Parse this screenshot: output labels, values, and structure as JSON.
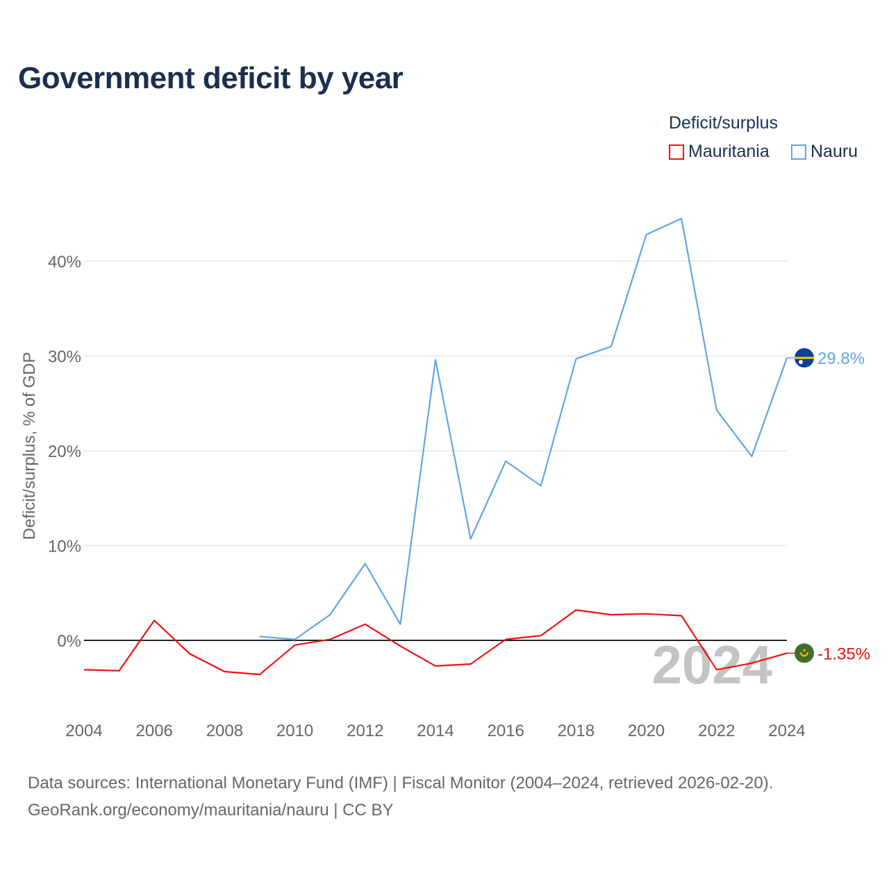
{
  "title": "Government deficit by year",
  "legend": {
    "title": "Deficit/surplus",
    "items": [
      {
        "label": "Mauritania",
        "color": "#ee1111"
      },
      {
        "label": "Nauru",
        "color": "#60a5e6"
      }
    ]
  },
  "chart_data": {
    "type": "line",
    "title": "Government deficit by year",
    "xlabel": "",
    "ylabel": "Deficit/surplus, % of GDP",
    "xlim": [
      2004,
      2024
    ],
    "ylim": [
      -5,
      45
    ],
    "x_ticks": [
      2004,
      2006,
      2008,
      2010,
      2012,
      2014,
      2016,
      2018,
      2020,
      2022,
      2024
    ],
    "y_ticks": [
      0,
      10,
      20,
      30,
      40
    ],
    "y_tick_labels": [
      "0%",
      "10%",
      "20%",
      "30%",
      "40%"
    ],
    "grid": true,
    "watermark_year": "2024",
    "series": [
      {
        "name": "Mauritania",
        "color": "#ee1111",
        "end_label": "-1.35%",
        "points": [
          [
            2004,
            -3.1
          ],
          [
            2005,
            -3.2
          ],
          [
            2006,
            2.1
          ],
          [
            2007,
            -1.4
          ],
          [
            2008,
            -3.3
          ],
          [
            2009,
            -3.6
          ],
          [
            2010,
            -0.5
          ],
          [
            2011,
            0.1
          ],
          [
            2012,
            1.7
          ],
          [
            2013,
            -0.6
          ],
          [
            2014,
            -2.7
          ],
          [
            2015,
            -2.5
          ],
          [
            2016,
            0.1
          ],
          [
            2017,
            0.5
          ],
          [
            2018,
            3.2
          ],
          [
            2019,
            2.7
          ],
          [
            2020,
            2.8
          ],
          [
            2021,
            2.6
          ],
          [
            2022,
            -3.1
          ],
          [
            2023,
            -2.4
          ],
          [
            2024,
            -1.35
          ]
        ]
      },
      {
        "name": "Nauru",
        "color": "#60a5e6",
        "end_label": "29.8%",
        "points": [
          [
            2009,
            0.4
          ],
          [
            2010,
            0.1
          ],
          [
            2011,
            2.7
          ],
          [
            2012,
            8.1
          ],
          [
            2013,
            1.7
          ],
          [
            2014,
            29.6
          ],
          [
            2015,
            10.7
          ],
          [
            2016,
            18.9
          ],
          [
            2017,
            16.3
          ],
          [
            2018,
            29.7
          ],
          [
            2019,
            31.0
          ],
          [
            2020,
            42.8
          ],
          [
            2021,
            44.5
          ],
          [
            2022,
            24.3
          ],
          [
            2023,
            19.4
          ],
          [
            2024,
            29.8
          ]
        ]
      }
    ]
  },
  "footer": {
    "line1": "Data sources: International Monetary Fund (IMF) | Fiscal Monitor (2004–2024, retrieved 2026-02-20).",
    "line2": "GeoRank.org/economy/mauritania/nauru | CC BY"
  }
}
